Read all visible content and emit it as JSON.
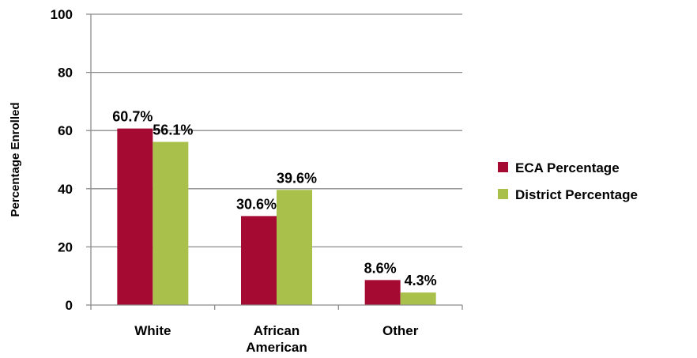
{
  "chart_data": {
    "type": "bar",
    "categories": [
      "White",
      "African American",
      "Other"
    ],
    "category_lines": [
      [
        "White"
      ],
      [
        "African",
        "American"
      ],
      [
        "Other"
      ]
    ],
    "series": [
      {
        "name": "ECA Percentage",
        "values": [
          60.7,
          30.6,
          8.6
        ],
        "labels": [
          "60.7%",
          "30.6%",
          "8.6%"
        ],
        "color": "#A50A33"
      },
      {
        "name": "District Percentage",
        "values": [
          56.1,
          39.6,
          4.3
        ],
        "labels": [
          "56.1%",
          "39.6%",
          "4.3%"
        ],
        "color": "#A9C14A"
      }
    ],
    "ylabel": "Percentage Enrolled",
    "xlabel": "",
    "ylim": [
      0,
      100
    ],
    "yticks": [
      0,
      20,
      40,
      60,
      80,
      100
    ],
    "grid": true,
    "legend": "right"
  }
}
